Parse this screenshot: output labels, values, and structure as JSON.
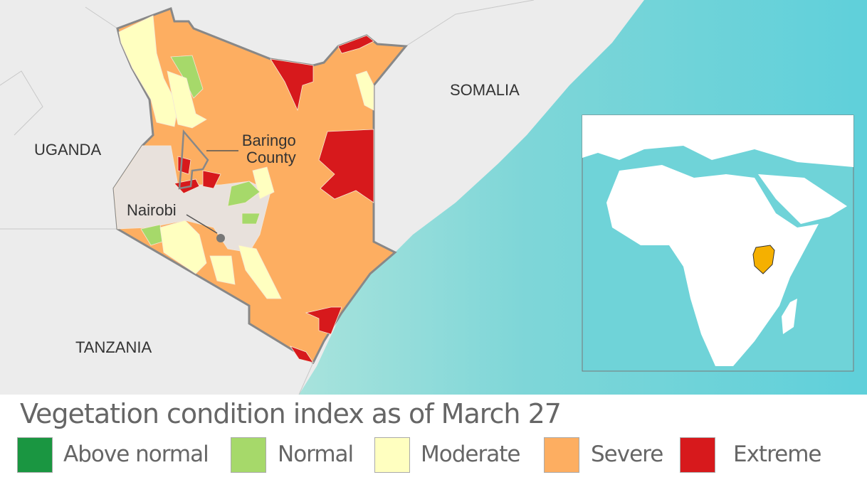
{
  "map": {
    "country_labels": [
      "UGANDA",
      "SOMALIA",
      "TANZANIA"
    ],
    "callouts": {
      "county": "Baringo\nCounty",
      "county_line1": "Baringo",
      "county_line2": "County",
      "city": "Nairobi"
    },
    "colors": {
      "land": "#ececec",
      "sea": "#7fd6d6",
      "kenya_no_data": "#e8e1dc",
      "border": "#888888",
      "inset_highlight": "#f5b000"
    }
  },
  "legend": {
    "title": "Vegetation condition index as of March 27",
    "items": [
      {
        "label": "Above normal",
        "color": "#1a9641"
      },
      {
        "label": "Normal",
        "color": "#a6d96a"
      },
      {
        "label": "Moderate",
        "color": "#ffffc0"
      },
      {
        "label": "Severe",
        "color": "#fdae61"
      },
      {
        "label": "Extreme",
        "color": "#d7191c"
      }
    ]
  }
}
